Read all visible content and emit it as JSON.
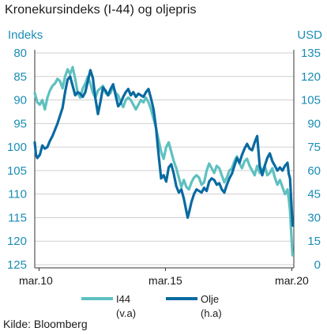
{
  "chart_data": {
    "type": "line",
    "title": "Kronekursindeks (I-44) og oljepris",
    "left_axis": {
      "label": "Indeks",
      "min": 80,
      "max": 125,
      "inverted": true,
      "ticks": [
        "80",
        "85",
        "90",
        "95",
        "100",
        "105",
        "110",
        "115",
        "120",
        "125"
      ]
    },
    "right_axis": {
      "label": "USD",
      "min": 0,
      "max": 135,
      "ticks": [
        "135",
        "120",
        "105",
        "90",
        "75",
        "60",
        "45",
        "30",
        "15",
        "0"
      ]
    },
    "x_axis": {
      "start": 2010.0,
      "end": 2020.25,
      "ticks": [
        {
          "label": "mar.10",
          "x": 2010.17
        },
        {
          "label": "mar.15",
          "x": 2015.17
        },
        {
          "label": "mar.20",
          "x": 2020.17
        }
      ]
    },
    "grid": true,
    "series": [
      {
        "name": "I44",
        "sub": "(v.a)",
        "axis": "left",
        "color": "#5fc0c0",
        "points": [
          [
            2010.0,
            88.5
          ],
          [
            2010.1,
            90.5
          ],
          [
            2010.2,
            91.0
          ],
          [
            2010.3,
            90.0
          ],
          [
            2010.4,
            92.0
          ],
          [
            2010.5,
            89.5
          ],
          [
            2010.6,
            88.0
          ],
          [
            2010.7,
            87.0
          ],
          [
            2010.8,
            86.5
          ],
          [
            2010.9,
            85.5
          ],
          [
            2011.0,
            86.0
          ],
          [
            2011.1,
            87.5
          ],
          [
            2011.2,
            85.0
          ],
          [
            2011.3,
            83.5
          ],
          [
            2011.4,
            84.5
          ],
          [
            2011.5,
            83.0
          ],
          [
            2011.6,
            85.5
          ],
          [
            2011.7,
            88.5
          ],
          [
            2011.8,
            89.5
          ],
          [
            2011.9,
            87.5
          ],
          [
            2012.0,
            86.5
          ],
          [
            2012.1,
            85.0
          ],
          [
            2012.2,
            86.5
          ],
          [
            2012.3,
            88.5
          ],
          [
            2012.4,
            89.5
          ],
          [
            2012.5,
            88.0
          ],
          [
            2012.6,
            87.5
          ],
          [
            2012.7,
            87.0
          ],
          [
            2012.8,
            88.5
          ],
          [
            2012.9,
            89.0
          ],
          [
            2013.0,
            88.5
          ],
          [
            2013.1,
            87.0
          ],
          [
            2013.2,
            88.5
          ],
          [
            2013.3,
            89.0
          ],
          [
            2013.4,
            90.5
          ],
          [
            2013.5,
            91.5
          ],
          [
            2013.6,
            90.0
          ],
          [
            2013.7,
            89.5
          ],
          [
            2013.8,
            90.0
          ],
          [
            2013.9,
            91.0
          ],
          [
            2014.0,
            92.0
          ],
          [
            2014.1,
            91.0
          ],
          [
            2014.2,
            90.0
          ],
          [
            2014.3,
            90.5
          ],
          [
            2014.4,
            89.5
          ],
          [
            2014.5,
            90.5
          ],
          [
            2014.6,
            92.0
          ],
          [
            2014.7,
            94.0
          ],
          [
            2014.8,
            96.0
          ],
          [
            2014.9,
            98.5
          ],
          [
            2015.0,
            101.0
          ],
          [
            2015.1,
            102.5
          ],
          [
            2015.2,
            100.0
          ],
          [
            2015.3,
            99.0
          ],
          [
            2015.4,
            101.0
          ],
          [
            2015.5,
            103.0
          ],
          [
            2015.6,
            104.5
          ],
          [
            2015.7,
            106.5
          ],
          [
            2015.8,
            108.5
          ],
          [
            2015.9,
            107.0
          ],
          [
            2016.0,
            108.5
          ],
          [
            2016.1,
            109.0
          ],
          [
            2016.2,
            107.5
          ],
          [
            2016.3,
            106.5
          ],
          [
            2016.4,
            106.0
          ],
          [
            2016.5,
            106.5
          ],
          [
            2016.6,
            108.0
          ],
          [
            2016.7,
            107.5
          ],
          [
            2016.8,
            105.0
          ],
          [
            2016.9,
            103.5
          ],
          [
            2017.0,
            104.5
          ],
          [
            2017.1,
            105.5
          ],
          [
            2017.2,
            104.0
          ],
          [
            2017.3,
            104.5
          ],
          [
            2017.4,
            106.0
          ],
          [
            2017.5,
            107.5
          ],
          [
            2017.6,
            106.5
          ],
          [
            2017.7,
            105.0
          ],
          [
            2017.8,
            104.5
          ],
          [
            2017.9,
            103.0
          ],
          [
            2018.0,
            102.0
          ],
          [
            2018.1,
            103.5
          ],
          [
            2018.2,
            104.5
          ],
          [
            2018.3,
            103.0
          ],
          [
            2018.4,
            102.5
          ],
          [
            2018.5,
            104.0
          ],
          [
            2018.6,
            105.0
          ],
          [
            2018.7,
            106.0
          ],
          [
            2018.8,
            104.0
          ],
          [
            2018.9,
            105.5
          ],
          [
            2019.0,
            105.0
          ],
          [
            2019.1,
            104.0
          ],
          [
            2019.2,
            106.0
          ],
          [
            2019.3,
            105.5
          ],
          [
            2019.4,
            104.5
          ],
          [
            2019.5,
            106.5
          ],
          [
            2019.6,
            108.0
          ],
          [
            2019.7,
            107.0
          ],
          [
            2019.8,
            108.5
          ],
          [
            2019.9,
            110.0
          ],
          [
            2020.0,
            109.0
          ],
          [
            2020.05,
            111.0
          ],
          [
            2020.1,
            113.5
          ],
          [
            2020.15,
            118.5
          ],
          [
            2020.2,
            123.0
          ]
        ]
      },
      {
        "name": "Olje",
        "sub": "(h.a)",
        "axis": "right",
        "color": "#0a6aa1",
        "points": [
          [
            2010.0,
            78
          ],
          [
            2010.05,
            70
          ],
          [
            2010.1,
            68
          ],
          [
            2010.2,
            70
          ],
          [
            2010.3,
            76
          ],
          [
            2010.4,
            74
          ],
          [
            2010.5,
            75
          ],
          [
            2010.6,
            79
          ],
          [
            2010.7,
            82
          ],
          [
            2010.8,
            86
          ],
          [
            2010.9,
            90
          ],
          [
            2011.0,
            95
          ],
          [
            2011.1,
            100
          ],
          [
            2011.2,
            110
          ],
          [
            2011.3,
            118
          ],
          [
            2011.4,
            120
          ],
          [
            2011.5,
            114
          ],
          [
            2011.6,
            108
          ],
          [
            2011.7,
            110
          ],
          [
            2011.8,
            109
          ],
          [
            2011.9,
            107
          ],
          [
            2012.0,
            110
          ],
          [
            2012.1,
            117
          ],
          [
            2012.2,
            124
          ],
          [
            2012.3,
            119
          ],
          [
            2012.4,
            106
          ],
          [
            2012.5,
            96
          ],
          [
            2012.6,
            104
          ],
          [
            2012.7,
            113
          ],
          [
            2012.8,
            111
          ],
          [
            2012.9,
            108
          ],
          [
            2013.0,
            112
          ],
          [
            2013.1,
            115
          ],
          [
            2013.2,
            108
          ],
          [
            2013.3,
            101
          ],
          [
            2013.4,
            103
          ],
          [
            2013.5,
            107
          ],
          [
            2013.6,
            110
          ],
          [
            2013.7,
            112
          ],
          [
            2013.8,
            108
          ],
          [
            2013.9,
            110
          ],
          [
            2014.0,
            107
          ],
          [
            2014.1,
            109
          ],
          [
            2014.2,
            108
          ],
          [
            2014.3,
            107
          ],
          [
            2014.4,
            110
          ],
          [
            2014.5,
            112
          ],
          [
            2014.6,
            106
          ],
          [
            2014.7,
            99
          ],
          [
            2014.8,
            87
          ],
          [
            2014.9,
            70
          ],
          [
            2015.0,
            55
          ],
          [
            2015.1,
            57
          ],
          [
            2015.2,
            53
          ],
          [
            2015.3,
            62
          ],
          [
            2015.4,
            64
          ],
          [
            2015.5,
            58
          ],
          [
            2015.6,
            50
          ],
          [
            2015.7,
            46
          ],
          [
            2015.8,
            48
          ],
          [
            2015.9,
            42
          ],
          [
            2016.0,
            34
          ],
          [
            2016.05,
            30
          ],
          [
            2016.1,
            33
          ],
          [
            2016.2,
            40
          ],
          [
            2016.3,
            45
          ],
          [
            2016.4,
            48
          ],
          [
            2016.5,
            47
          ],
          [
            2016.6,
            46
          ],
          [
            2016.7,
            49
          ],
          [
            2016.8,
            47
          ],
          [
            2016.9,
            53
          ],
          [
            2017.0,
            55
          ],
          [
            2017.1,
            54
          ],
          [
            2017.2,
            51
          ],
          [
            2017.3,
            52
          ],
          [
            2017.4,
            48
          ],
          [
            2017.5,
            46
          ],
          [
            2017.6,
            51
          ],
          [
            2017.7,
            55
          ],
          [
            2017.8,
            58
          ],
          [
            2017.9,
            63
          ],
          [
            2018.0,
            68
          ],
          [
            2018.1,
            65
          ],
          [
            2018.2,
            70
          ],
          [
            2018.3,
            74
          ],
          [
            2018.4,
            77
          ],
          [
            2018.5,
            74
          ],
          [
            2018.6,
            73
          ],
          [
            2018.7,
            78
          ],
          [
            2018.8,
            82
          ],
          [
            2018.9,
            63
          ],
          [
            2019.0,
            57
          ],
          [
            2019.1,
            63
          ],
          [
            2019.2,
            68
          ],
          [
            2019.3,
            71
          ],
          [
            2019.4,
            66
          ],
          [
            2019.5,
            63
          ],
          [
            2019.6,
            60
          ],
          [
            2019.7,
            62
          ],
          [
            2019.8,
            60
          ],
          [
            2019.9,
            63
          ],
          [
            2020.0,
            65
          ],
          [
            2020.05,
            58
          ],
          [
            2020.1,
            55
          ],
          [
            2020.15,
            40
          ],
          [
            2020.2,
            25
          ]
        ]
      }
    ]
  },
  "source": "Kilde: Bloomberg"
}
